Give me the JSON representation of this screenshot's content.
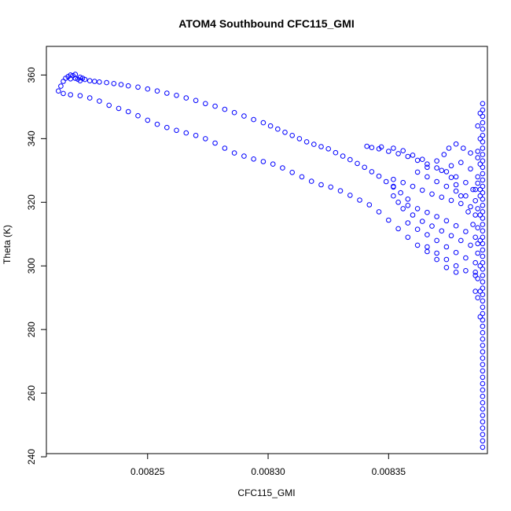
{
  "chart_data": {
    "type": "scatter",
    "title": "ATOM4 Southbound CFC115_GMI",
    "xlabel": "CFC115_GMI",
    "ylabel": "Theta (K)",
    "xlim": [
      0.008208,
      0.008391
    ],
    "ylim": [
      241,
      369
    ],
    "xticks": [
      0.00825,
      0.0083,
      0.00835
    ],
    "xtick_labels": [
      "0.00825",
      "0.00830",
      "0.00835"
    ],
    "yticks": [
      240,
      260,
      280,
      300,
      320,
      340,
      360
    ],
    "ytick_labels": [
      "240",
      "260",
      "280",
      "300",
      "320",
      "340",
      "360"
    ],
    "marker": "open-circle",
    "grid": false,
    "legend": "none",
    "colors": {
      "points": "#0000ff",
      "axis": "#000000"
    },
    "series": [
      {
        "points": [
          [
            0.008213,
            355.0
          ],
          [
            0.008214,
            356.5
          ],
          [
            0.008215,
            358.0
          ],
          [
            0.008216,
            359.0
          ],
          [
            0.008217,
            359.5
          ],
          [
            0.008218,
            360.0
          ],
          [
            0.008219,
            359.8
          ],
          [
            0.00822,
            359.0
          ],
          [
            0.008221,
            358.7
          ],
          [
            0.008222,
            359.3
          ],
          [
            0.008223,
            359.0
          ],
          [
            0.008224,
            358.6
          ],
          [
            0.008218,
            358.8
          ],
          [
            0.00822,
            360.2
          ],
          [
            0.008222,
            358.2
          ],
          [
            0.008226,
            358.2
          ],
          [
            0.008228,
            358.0
          ],
          [
            0.00823,
            357.8
          ],
          [
            0.008233,
            357.6
          ],
          [
            0.008236,
            357.3
          ],
          [
            0.008239,
            357.0
          ],
          [
            0.008242,
            356.6
          ],
          [
            0.008246,
            356.2
          ],
          [
            0.00825,
            355.6
          ],
          [
            0.008254,
            355.0
          ],
          [
            0.008258,
            354.3
          ],
          [
            0.008262,
            353.6
          ],
          [
            0.008266,
            352.8
          ],
          [
            0.00827,
            352.0
          ],
          [
            0.008274,
            351.0
          ],
          [
            0.008278,
            350.2
          ],
          [
            0.008282,
            349.2
          ],
          [
            0.008286,
            348.2
          ],
          [
            0.00829,
            347.1
          ],
          [
            0.008294,
            346.0
          ],
          [
            0.008298,
            345.0
          ],
          [
            0.008301,
            344.0
          ],
          [
            0.008304,
            343.0
          ],
          [
            0.008307,
            342.0
          ],
          [
            0.00831,
            341.0
          ],
          [
            0.008313,
            340.0
          ],
          [
            0.008316,
            339.0
          ],
          [
            0.008319,
            338.2
          ],
          [
            0.008322,
            337.5
          ],
          [
            0.008325,
            336.8
          ],
          [
            0.008328,
            335.6
          ],
          [
            0.008331,
            334.5
          ],
          [
            0.008334,
            333.4
          ],
          [
            0.008337,
            332.2
          ],
          [
            0.00834,
            331.0
          ],
          [
            0.008343,
            329.6
          ],
          [
            0.008346,
            328.2
          ],
          [
            0.008349,
            326.5
          ],
          [
            0.008352,
            324.8
          ],
          [
            0.008355,
            323.0
          ],
          [
            0.008358,
            321.0
          ],
          [
            0.008215,
            354.2
          ],
          [
            0.008218,
            353.8
          ],
          [
            0.008222,
            353.5
          ],
          [
            0.008226,
            352.8
          ],
          [
            0.00823,
            351.8
          ],
          [
            0.008234,
            350.5
          ],
          [
            0.008238,
            349.5
          ],
          [
            0.008242,
            348.5
          ],
          [
            0.008246,
            347.2
          ],
          [
            0.00825,
            345.8
          ],
          [
            0.008254,
            344.5
          ],
          [
            0.008258,
            343.5
          ],
          [
            0.008262,
            342.6
          ],
          [
            0.008266,
            341.8
          ],
          [
            0.00827,
            341.0
          ],
          [
            0.008274,
            340.0
          ],
          [
            0.008278,
            338.6
          ],
          [
            0.008282,
            337.0
          ],
          [
            0.008286,
            335.5
          ],
          [
            0.00829,
            334.5
          ],
          [
            0.008294,
            333.6
          ],
          [
            0.008298,
            332.8
          ],
          [
            0.008302,
            332.0
          ],
          [
            0.008306,
            330.8
          ],
          [
            0.00831,
            329.4
          ],
          [
            0.008314,
            328.0
          ],
          [
            0.008318,
            326.6
          ],
          [
            0.008322,
            325.5
          ],
          [
            0.008326,
            324.8
          ],
          [
            0.00833,
            323.6
          ],
          [
            0.008334,
            322.2
          ],
          [
            0.008338,
            320.7
          ],
          [
            0.008342,
            319.2
          ],
          [
            0.008346,
            317.0
          ],
          [
            0.00835,
            314.4
          ],
          [
            0.008354,
            311.7
          ],
          [
            0.008358,
            309.0
          ],
          [
            0.008362,
            306.5
          ],
          [
            0.008366,
            304.5
          ],
          [
            0.00837,
            302.0
          ],
          [
            0.008374,
            299.5
          ],
          [
            0.008378,
            298.0
          ],
          [
            0.008341,
            337.6
          ],
          [
            0.008343,
            337.2
          ],
          [
            0.008346,
            336.8
          ],
          [
            0.00835,
            336.0
          ],
          [
            0.008354,
            335.3
          ],
          [
            0.008358,
            334.4
          ],
          [
            0.008362,
            333.2
          ],
          [
            0.008366,
            332.0
          ],
          [
            0.00837,
            330.8
          ],
          [
            0.008374,
            329.6
          ],
          [
            0.008378,
            328.0
          ],
          [
            0.008382,
            326.2
          ],
          [
            0.008385,
            324.0
          ],
          [
            0.008388,
            322.0
          ],
          [
            0.008347,
            337.4
          ],
          [
            0.008352,
            337.0
          ],
          [
            0.008356,
            336.2
          ],
          [
            0.00836,
            334.8
          ],
          [
            0.008364,
            333.5
          ],
          [
            0.008352,
            325.0
          ],
          [
            0.008352,
            322.0
          ],
          [
            0.008354,
            320.0
          ],
          [
            0.008358,
            319.0
          ],
          [
            0.008362,
            318.0
          ],
          [
            0.008366,
            316.8
          ],
          [
            0.00837,
            315.5
          ],
          [
            0.008374,
            314.2
          ],
          [
            0.008378,
            312.6
          ],
          [
            0.008382,
            310.8
          ],
          [
            0.008386,
            309.0
          ],
          [
            0.008352,
            327.2
          ],
          [
            0.008356,
            326.2
          ],
          [
            0.00836,
            325.0
          ],
          [
            0.008364,
            323.8
          ],
          [
            0.008368,
            322.6
          ],
          [
            0.008372,
            321.6
          ],
          [
            0.008376,
            320.6
          ],
          [
            0.00838,
            319.6
          ],
          [
            0.008384,
            318.6
          ],
          [
            0.008362,
            329.5
          ],
          [
            0.008366,
            331.0
          ],
          [
            0.00837,
            333.0
          ],
          [
            0.008373,
            335.0
          ],
          [
            0.008375,
            337.0
          ],
          [
            0.008378,
            338.3
          ],
          [
            0.008381,
            337.0
          ],
          [
            0.008384,
            335.5
          ],
          [
            0.008387,
            334.0
          ],
          [
            0.008366,
            328.0
          ],
          [
            0.00837,
            326.5
          ],
          [
            0.008374,
            325.0
          ],
          [
            0.008378,
            323.5
          ],
          [
            0.008382,
            322.0
          ],
          [
            0.008386,
            320.5
          ],
          [
            0.008356,
            318.0
          ],
          [
            0.00836,
            316.0
          ],
          [
            0.008364,
            314.0
          ],
          [
            0.008368,
            312.5
          ],
          [
            0.008372,
            311.0
          ],
          [
            0.008376,
            309.5
          ],
          [
            0.00838,
            308.0
          ],
          [
            0.008384,
            306.5
          ],
          [
            0.008358,
            313.5
          ],
          [
            0.008362,
            311.5
          ],
          [
            0.008366,
            309.8
          ],
          [
            0.00837,
            308.0
          ],
          [
            0.008374,
            306.0
          ],
          [
            0.008378,
            304.2
          ],
          [
            0.008382,
            302.5
          ],
          [
            0.008386,
            301.0
          ],
          [
            0.008366,
            306.0
          ],
          [
            0.00837,
            304.0
          ],
          [
            0.008374,
            302.0
          ],
          [
            0.008378,
            300.0
          ],
          [
            0.008382,
            298.5
          ],
          [
            0.008386,
            297.0
          ],
          [
            0.008376,
            327.8
          ],
          [
            0.008378,
            325.5
          ],
          [
            0.00838,
            322.0
          ],
          [
            0.008383,
            317.0
          ],
          [
            0.008385,
            313.0
          ],
          [
            0.008387,
            307.0
          ],
          [
            0.008372,
            330.0
          ],
          [
            0.008376,
            331.5
          ],
          [
            0.00838,
            332.5
          ],
          [
            0.008384,
            330.5
          ],
          [
            0.008387,
            328.0
          ]
        ]
      },
      {
        "points": [
          [
            0.008389,
            351.0
          ],
          [
            0.008389,
            349.0
          ],
          [
            0.008389,
            347.0
          ],
          [
            0.008389,
            345.0
          ],
          [
            0.008389,
            343.0
          ],
          [
            0.008389,
            341.0
          ],
          [
            0.008389,
            339.0
          ],
          [
            0.008389,
            337.0
          ],
          [
            0.008389,
            335.0
          ],
          [
            0.008389,
            333.0
          ],
          [
            0.008389,
            331.0
          ],
          [
            0.008389,
            329.0
          ],
          [
            0.008389,
            327.0
          ],
          [
            0.008389,
            325.0
          ],
          [
            0.008389,
            323.0
          ],
          [
            0.008389,
            321.0
          ],
          [
            0.008389,
            319.0
          ],
          [
            0.008389,
            317.0
          ],
          [
            0.008389,
            315.0
          ],
          [
            0.008389,
            313.0
          ],
          [
            0.008389,
            311.0
          ],
          [
            0.008389,
            309.0
          ],
          [
            0.008389,
            307.0
          ],
          [
            0.008389,
            305.0
          ],
          [
            0.008389,
            303.0
          ],
          [
            0.008389,
            301.0
          ],
          [
            0.008389,
            299.0
          ],
          [
            0.008389,
            297.0
          ],
          [
            0.008389,
            295.0
          ],
          [
            0.008389,
            293.0
          ],
          [
            0.008389,
            291.0
          ],
          [
            0.008389,
            289.0
          ],
          [
            0.008389,
            287.0
          ],
          [
            0.008389,
            285.0
          ],
          [
            0.008389,
            283.0
          ],
          [
            0.008389,
            281.0
          ],
          [
            0.008389,
            279.0
          ],
          [
            0.008389,
            277.0
          ],
          [
            0.008389,
            275.0
          ],
          [
            0.008389,
            273.0
          ],
          [
            0.008389,
            271.0
          ],
          [
            0.008389,
            269.0
          ],
          [
            0.008389,
            267.0
          ],
          [
            0.008389,
            265.0
          ],
          [
            0.008389,
            263.0
          ],
          [
            0.008389,
            261.0
          ],
          [
            0.008389,
            259.0
          ],
          [
            0.008389,
            257.0
          ],
          [
            0.008389,
            255.0
          ],
          [
            0.008389,
            253.0
          ],
          [
            0.008389,
            251.0
          ],
          [
            0.008389,
            249.0
          ],
          [
            0.008389,
            247.0
          ],
          [
            0.008389,
            245.0
          ],
          [
            0.008389,
            243.0
          ],
          [
            0.008388,
            348.0
          ],
          [
            0.008388,
            340.0
          ],
          [
            0.008388,
            332.0
          ],
          [
            0.008388,
            324.0
          ],
          [
            0.008388,
            316.0
          ],
          [
            0.008388,
            308.0
          ],
          [
            0.008388,
            300.0
          ],
          [
            0.008388,
            292.0
          ],
          [
            0.008388,
            284.0
          ],
          [
            0.008387,
            344.0
          ],
          [
            0.008387,
            336.0
          ],
          [
            0.008387,
            326.0
          ],
          [
            0.008387,
            318.0
          ],
          [
            0.008387,
            312.0
          ],
          [
            0.008387,
            304.0
          ],
          [
            0.008387,
            296.0
          ],
          [
            0.008387,
            290.0
          ],
          [
            0.008386,
            324.0
          ],
          [
            0.008386,
            316.0
          ],
          [
            0.008386,
            298.0
          ],
          [
            0.008386,
            292.0
          ]
        ]
      }
    ]
  }
}
